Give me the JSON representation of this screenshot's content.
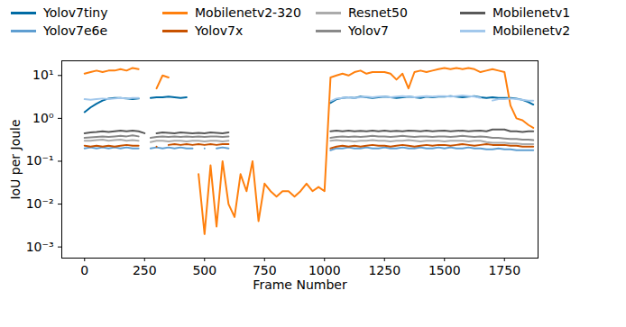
{
  "chart_data": {
    "type": "line",
    "x_label": "Frame Number",
    "y_label": "IoU per Joule",
    "log": "y",
    "legend": "top",
    "grid": false,
    "xlim": [
      -95,
      1890
    ],
    "xticks": [
      0,
      250,
      500,
      750,
      1000,
      1250,
      1500,
      1750
    ],
    "ylim": [
      0.00055,
      22
    ],
    "yticks": [
      {
        "value": 10,
        "label": "10¹"
      },
      {
        "value": 1,
        "label": "10⁰"
      },
      {
        "value": 0.1,
        "label": "10⁻¹"
      },
      {
        "value": 0.01,
        "label": "10⁻²"
      },
      {
        "value": 0.001,
        "label": "10⁻³"
      }
    ],
    "x": [
      0,
      25,
      50,
      75,
      100,
      125,
      150,
      175,
      200,
      225,
      250,
      275,
      300,
      325,
      350,
      375,
      400,
      425,
      450,
      475,
      500,
      525,
      550,
      575,
      600,
      625,
      650,
      675,
      700,
      725,
      750,
      775,
      800,
      825,
      850,
      875,
      900,
      925,
      950,
      975,
      1000,
      1025,
      1050,
      1075,
      1100,
      1125,
      1150,
      1175,
      1200,
      1225,
      1250,
      1275,
      1300,
      1325,
      1350,
      1375,
      1400,
      1425,
      1450,
      1475,
      1500,
      1525,
      1550,
      1575,
      1600,
      1625,
      1650,
      1675,
      1700,
      1725,
      1750,
      1775,
      1800,
      1825,
      1850,
      1870
    ],
    "series": [
      {
        "name": "Yolov7tiny",
        "color": "#006BA4",
        "values": [
          1.4,
          1.8,
          2.2,
          2.6,
          2.9,
          3.0,
          3.0,
          2.9,
          2.8,
          2.9,
          null,
          3.0,
          3.1,
          3.1,
          3.2,
          3.1,
          3.0,
          3.1,
          null,
          null,
          null,
          null,
          null,
          null,
          null,
          null,
          null,
          null,
          null,
          null,
          null,
          null,
          null,
          null,
          null,
          null,
          null,
          null,
          null,
          null,
          null,
          2.3,
          2.8,
          3.0,
          3.1,
          3.0,
          3.2,
          3.1,
          3.0,
          3.1,
          3.2,
          3.1,
          3.0,
          3.1,
          3.2,
          3.1,
          3.0,
          3.2,
          3.1,
          3.2,
          3.2,
          3.3,
          3.2,
          3.1,
          3.2,
          3.3,
          3.1,
          3.0,
          3.1,
          3.0,
          3.0,
          3.0,
          2.9,
          2.7,
          2.4,
          2.1
        ]
      },
      {
        "name": "Mobilenetv2-320",
        "color": "#FF800E",
        "values": [
          11,
          12,
          13,
          12,
          13,
          13,
          14,
          13,
          15,
          14,
          null,
          null,
          5,
          10,
          9,
          null,
          null,
          null,
          null,
          0.05,
          0.002,
          0.08,
          0.003,
          0.1,
          0.01,
          0.005,
          0.05,
          0.02,
          0.1,
          0.004,
          0.03,
          0.02,
          0.015,
          0.02,
          0.02,
          0.015,
          0.02,
          0.03,
          0.02,
          0.025,
          0.02,
          9,
          10,
          11,
          10,
          12,
          13,
          11,
          12,
          12,
          12,
          11,
          8,
          11,
          5,
          12,
          13,
          12,
          13,
          14,
          15,
          14,
          15,
          14,
          15,
          14,
          12,
          13,
          14,
          13,
          12,
          2.0,
          1.0,
          0.9,
          0.7,
          0.6
        ]
      },
      {
        "name": "Resnet50",
        "color": "#ABABAB",
        "values": [
          0.3,
          0.3,
          0.31,
          0.32,
          0.3,
          0.31,
          0.32,
          0.3,
          0.31,
          0.3,
          null,
          0.28,
          0.3,
          0.3,
          0.29,
          0.3,
          0.3,
          0.29,
          0.3,
          0.3,
          0.29,
          0.3,
          0.3,
          0.29,
          0.3,
          null,
          null,
          null,
          null,
          null,
          null,
          null,
          null,
          null,
          null,
          null,
          null,
          null,
          null,
          null,
          null,
          0.3,
          0.31,
          0.3,
          0.3,
          0.29,
          0.3,
          0.3,
          0.31,
          0.3,
          0.3,
          0.29,
          0.3,
          0.3,
          0.31,
          0.3,
          0.29,
          0.3,
          0.3,
          0.3,
          0.29,
          0.3,
          0.3,
          0.3,
          0.29,
          0.3,
          0.3,
          0.28,
          0.27,
          0.27,
          0.27,
          0.26,
          0.26,
          0.25,
          0.25,
          0.25
        ]
      },
      {
        "name": "Mobilenetv1",
        "color": "#595959",
        "values": [
          0.45,
          0.47,
          0.48,
          0.5,
          0.48,
          0.5,
          0.52,
          0.5,
          0.52,
          0.5,
          0.45,
          null,
          0.45,
          0.47,
          0.46,
          0.45,
          0.47,
          0.46,
          0.45,
          0.46,
          0.45,
          0.47,
          0.46,
          0.45,
          0.47,
          null,
          null,
          null,
          null,
          null,
          null,
          null,
          null,
          null,
          null,
          null,
          null,
          null,
          null,
          null,
          null,
          0.5,
          0.52,
          0.5,
          0.52,
          0.5,
          0.51,
          0.5,
          0.52,
          0.5,
          0.52,
          0.5,
          0.51,
          0.5,
          0.52,
          0.51,
          0.5,
          0.52,
          0.5,
          0.51,
          0.52,
          0.5,
          0.51,
          0.52,
          0.5,
          0.51,
          0.52,
          0.5,
          0.55,
          0.55,
          0.55,
          0.5,
          0.5,
          0.48,
          0.5,
          0.5
        ]
      },
      {
        "name": "Yolov7e6e",
        "color": "#5F9ED1",
        "values": [
          0.2,
          0.21,
          0.2,
          0.21,
          0.2,
          0.21,
          0.2,
          0.21,
          0.2,
          0.2,
          null,
          0.2,
          0.21,
          0.2,
          0.21,
          0.2,
          0.21,
          0.2,
          0.2,
          null,
          0.2,
          null,
          0.2,
          0.21,
          0.2,
          null,
          null,
          null,
          null,
          null,
          null,
          null,
          null,
          null,
          null,
          null,
          null,
          null,
          null,
          null,
          null,
          0.18,
          0.2,
          0.2,
          0.21,
          0.2,
          0.2,
          0.21,
          0.2,
          0.2,
          0.21,
          0.2,
          0.2,
          0.21,
          0.2,
          0.2,
          0.21,
          0.2,
          0.2,
          0.21,
          0.2,
          0.21,
          0.2,
          0.2,
          0.21,
          0.2,
          0.2,
          0.19,
          0.19,
          0.2,
          0.19,
          0.19,
          0.18,
          0.18,
          0.18,
          0.18
        ]
      },
      {
        "name": "Yolov7x",
        "color": "#C85200",
        "values": [
          0.23,
          0.22,
          0.23,
          0.22,
          0.23,
          0.22,
          0.23,
          0.24,
          0.23,
          0.23,
          null,
          null,
          0.22,
          null,
          0.24,
          0.25,
          0.24,
          0.25,
          0.24,
          0.25,
          0.24,
          0.25,
          0.24,
          0.25,
          0.25,
          null,
          null,
          null,
          null,
          null,
          null,
          null,
          null,
          null,
          null,
          null,
          null,
          null,
          null,
          null,
          null,
          0.2,
          0.22,
          0.23,
          0.22,
          0.23,
          0.22,
          0.23,
          0.24,
          0.23,
          0.23,
          0.22,
          0.23,
          0.24,
          0.23,
          0.22,
          0.23,
          0.24,
          0.23,
          0.24,
          0.24,
          0.23,
          0.24,
          0.25,
          0.24,
          0.23,
          0.24,
          0.25,
          0.24,
          0.24,
          0.24,
          0.23,
          0.23,
          0.22,
          0.22,
          0.22
        ]
      },
      {
        "name": "Yolov7",
        "color": "#898989",
        "values": [
          0.35,
          0.36,
          0.37,
          0.38,
          0.37,
          0.38,
          0.39,
          0.38,
          0.4,
          0.38,
          null,
          0.35,
          0.37,
          0.38,
          0.37,
          0.38,
          0.37,
          0.38,
          0.37,
          0.38,
          0.37,
          0.38,
          0.38,
          0.37,
          0.38,
          null,
          null,
          null,
          null,
          null,
          null,
          null,
          null,
          null,
          null,
          null,
          null,
          null,
          null,
          null,
          null,
          0.35,
          0.37,
          0.38,
          0.37,
          0.38,
          0.37,
          0.38,
          0.39,
          0.38,
          0.38,
          0.37,
          0.38,
          0.39,
          0.38,
          0.37,
          0.38,
          0.38,
          0.37,
          0.38,
          0.38,
          0.37,
          0.38,
          0.39,
          0.38,
          0.37,
          0.38,
          0.37,
          0.35,
          0.35,
          0.34,
          0.33,
          0.33,
          0.32,
          0.32,
          0.31
        ]
      },
      {
        "name": "Mobilenetv2",
        "color": "#A2C8EC",
        "values": [
          2.8,
          2.7,
          2.8,
          2.9,
          2.8,
          2.9,
          3.0,
          2.9,
          3.0,
          3.0,
          null,
          null,
          null,
          null,
          null,
          null,
          null,
          null,
          null,
          null,
          null,
          null,
          null,
          null,
          null,
          null,
          null,
          null,
          null,
          null,
          null,
          null,
          null,
          null,
          null,
          null,
          null,
          null,
          null,
          null,
          null,
          2.5,
          2.9,
          3.0,
          3.1,
          3.0,
          3.1,
          3.2,
          3.1,
          3.2,
          3.2,
          3.1,
          3.2,
          3.3,
          3.2,
          3.1,
          3.2,
          3.3,
          3.2,
          3.3,
          3.3,
          3.2,
          3.3,
          3.4,
          3.3,
          3.2,
          3.0,
          null,
          2.6,
          2.8,
          2.8,
          2.9,
          2.8,
          2.7,
          2.6,
          2.6
        ]
      }
    ]
  }
}
